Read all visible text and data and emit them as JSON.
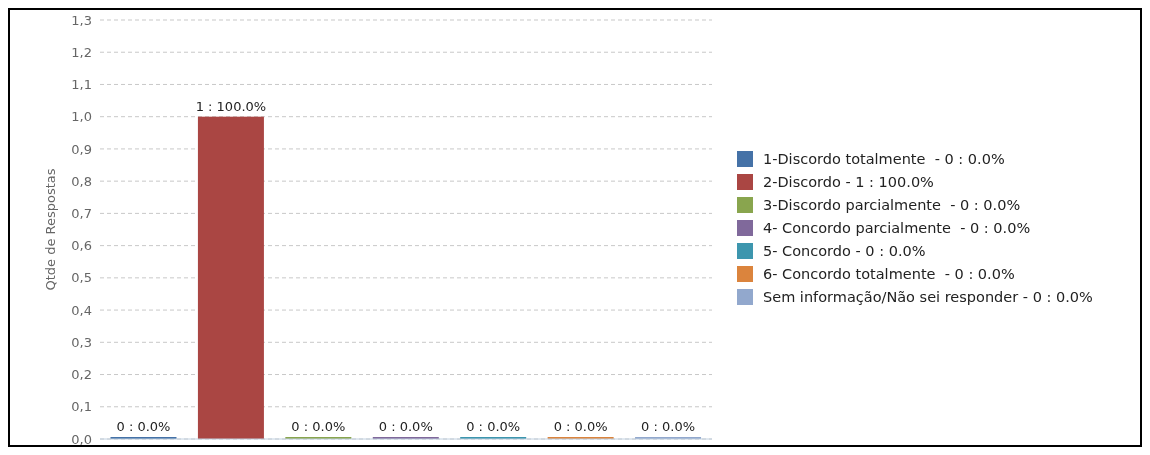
{
  "chart_data": {
    "type": "bar",
    "ylabel": "Qtde de Respostas",
    "categories": [
      null,
      null,
      null,
      null,
      null,
      null,
      null
    ],
    "stacked": true,
    "series": [
      {
        "name": "1-Discordo totalmente  - 0 : 0.0%",
        "color": "#4572a7",
        "values": [
          0,
          null,
          null,
          null,
          null,
          null,
          null
        ],
        "value_labels": [
          "0 : 0.0%",
          null,
          null,
          null,
          null,
          null,
          null
        ]
      },
      {
        "name": "2-Discordo - 1 : 100.0%",
        "color": "#aa4643",
        "values": [
          null,
          1,
          null,
          null,
          null,
          null,
          null
        ],
        "value_labels": [
          null,
          "1 : 100.0%",
          null,
          null,
          null,
          null,
          null
        ]
      },
      {
        "name": "3-Discordo parcialmente  - 0 : 0.0%",
        "color": "#89a54e",
        "values": [
          null,
          null,
          0,
          null,
          null,
          null,
          null
        ],
        "value_labels": [
          null,
          null,
          "0 : 0.0%",
          null,
          null,
          null,
          null
        ]
      },
      {
        "name": "4- Concordo parcialmente  - 0 : 0.0%",
        "color": "#80699b",
        "values": [
          null,
          null,
          null,
          0,
          null,
          null,
          null
        ],
        "value_labels": [
          null,
          null,
          null,
          "0 : 0.0%",
          null,
          null,
          null
        ]
      },
      {
        "name": "5- Concordo - 0 : 0.0%",
        "color": "#3d96ae",
        "values": [
          null,
          null,
          null,
          null,
          0,
          null,
          null
        ],
        "value_labels": [
          null,
          null,
          null,
          null,
          "0 : 0.0%",
          null,
          null
        ]
      },
      {
        "name": "6- Concordo totalmente  - 0 : 0.0%",
        "color": "#db843d",
        "values": [
          null,
          null,
          null,
          null,
          null,
          0,
          null
        ],
        "value_labels": [
          null,
          null,
          null,
          null,
          null,
          "0 : 0.0%",
          null
        ]
      },
      {
        "name": "Sem informação/Não sei responder - 0 : 0.0%",
        "color": "#92a8cd",
        "values": [
          null,
          null,
          null,
          null,
          null,
          null,
          0
        ],
        "value_labels": [
          null,
          null,
          null,
          null,
          null,
          null,
          "0 : 0.0%"
        ]
      }
    ],
    "ylim": [
      0,
      1.3
    ],
    "yticks": [
      {
        "value": 0,
        "label": "0,0"
      },
      {
        "value": 0.1,
        "label": "0,1"
      },
      {
        "value": 0.2,
        "label": "0,2"
      },
      {
        "value": 0.3,
        "label": "0,3"
      },
      {
        "value": 0.4,
        "label": "0,4"
      },
      {
        "value": 0.5,
        "label": "0,5"
      },
      {
        "value": 0.6,
        "label": "0,6"
      },
      {
        "value": 0.7,
        "label": "0,7"
      },
      {
        "value": 0.8,
        "label": "0,8"
      },
      {
        "value": 0.9,
        "label": "0,9"
      },
      {
        "value": 1,
        "label": "1,0"
      },
      {
        "value": 1.1,
        "label": "1,1"
      },
      {
        "value": 1.2,
        "label": "1,2"
      },
      {
        "value": 1.3,
        "label": "1,3"
      }
    ],
    "grid": "y",
    "legend": "right",
    "tick_labels": "y"
  }
}
